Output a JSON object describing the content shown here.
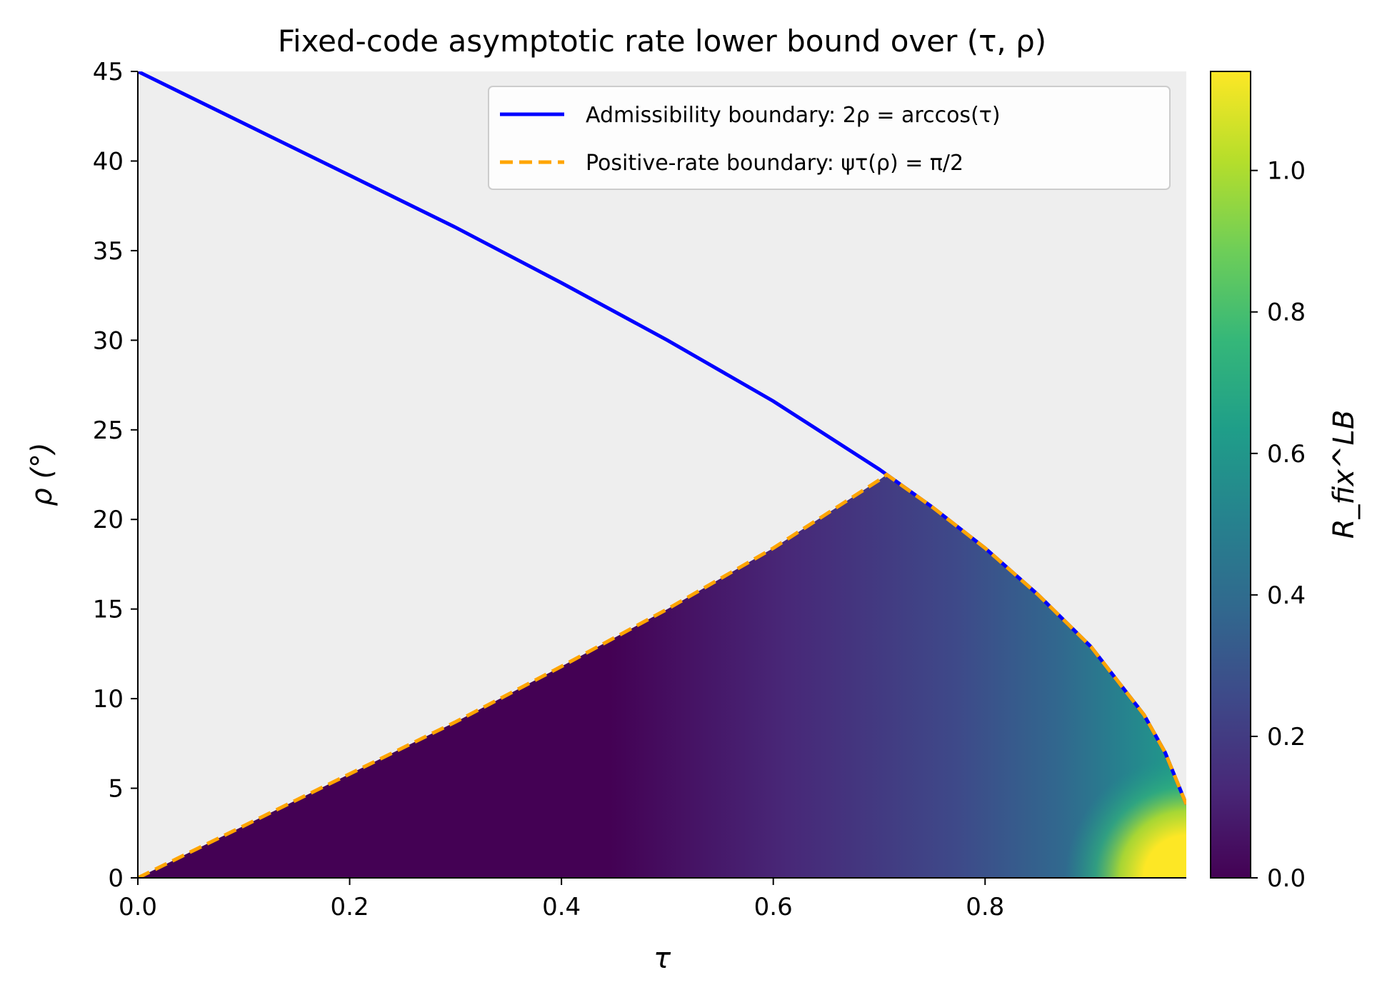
{
  "chart_data": {
    "type": "heatmap",
    "title": "Fixed-code asymptotic rate lower bound over (τ, ρ)",
    "xlabel": "τ",
    "ylabel": "ρ (°)",
    "xlim": [
      0.0,
      0.99
    ],
    "ylim": [
      0,
      45
    ],
    "x_ticks": [
      "0.0",
      "0.2",
      "0.4",
      "0.6",
      "0.8"
    ],
    "y_ticks": [
      "0",
      "5",
      "10",
      "15",
      "20",
      "25",
      "30",
      "35",
      "40",
      "45"
    ],
    "grid": false,
    "background_color": "#eeeeee",
    "legend_position": "top-right",
    "series": [
      {
        "name": "Admissibility boundary: 2ρ = arccos(τ)",
        "style": "solid",
        "color": "#0000ff",
        "x": [
          0.0,
          0.1,
          0.2,
          0.3,
          0.4,
          0.5,
          0.6,
          0.7,
          0.75,
          0.8,
          0.85,
          0.9,
          0.95,
          0.97,
          0.99
        ],
        "y": [
          45.0,
          42.1,
          39.2,
          36.3,
          33.2,
          30.0,
          26.6,
          22.8,
          20.7,
          18.4,
          15.8,
          12.9,
          9.1,
          7.0,
          4.1
        ]
      },
      {
        "name": "Positive-rate boundary: ψτ(ρ) = π/2",
        "style": "dashed",
        "color": "#ffa500",
        "x": [
          0.0,
          0.1,
          0.2,
          0.3,
          0.4,
          0.5,
          0.6,
          0.7,
          0.707,
          0.75,
          0.8,
          0.85,
          0.9,
          0.95,
          0.97,
          0.99
        ],
        "y": [
          0.0,
          2.9,
          5.8,
          8.7,
          11.8,
          15.0,
          18.4,
          22.2,
          22.5,
          20.7,
          18.4,
          15.8,
          12.9,
          9.1,
          7.0,
          4.1
        ]
      }
    ],
    "colorbar": {
      "label": "R_fix^LB",
      "colormap": "viridis",
      "range": [
        0.0,
        1.14
      ],
      "ticks": [
        "0.0",
        "0.2",
        "0.4",
        "0.6",
        "0.8",
        "1.0"
      ],
      "colors": [
        "#440154",
        "#482878",
        "#3e4989",
        "#31688e",
        "#26828e",
        "#1f9e89",
        "#35b779",
        "#6ece58",
        "#b5de2b",
        "#fde725"
      ]
    }
  }
}
